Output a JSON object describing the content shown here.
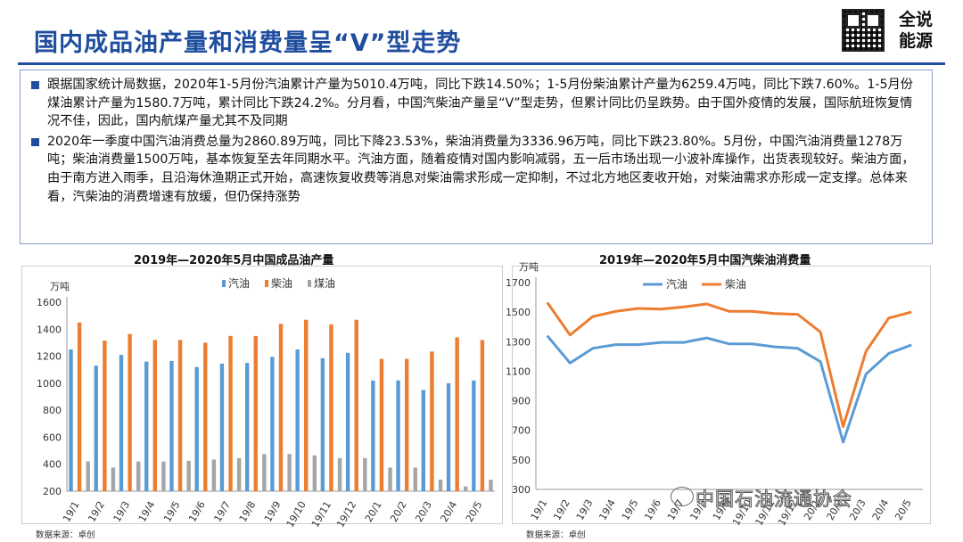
{
  "header": {
    "title": "国内成品油产量和消费量呈“V”型走势",
    "logo_text_1": "全说",
    "logo_text_2": "能源",
    "logo_icon": "qr-code-icon"
  },
  "summary": {
    "bullets": [
      "跟据国家统计局数据，2020年1-5月份汽油累计产量为5010.4万吨，同比下跌14.50%；1-5月份柴油累计产量为6259.4万吨，同比下跌7.60%。1-5月份煤油累计产量为1580.7万吨，累计同比下跌24.2%。分月看，中国汽柴油产量呈“V”型走势，但累计同比仍呈跌势。由于国外疫情的发展，国际航班恢复情况不佳，因此，国内航煤产量尤其不及同期",
      "2020年一季度中国汽油消费总量为2860.89万吨，同比下降23.53%，柴油消费量为3336.96万吨，同比下跌23.80%。5月份，中国汽油消费量1278万吨；柴油消费量1500万吨，基本恢复至去年同期水平。汽油方面，随着疫情对国内影响减弱，五一后市场出现一小波补库操作，出货表现较好。柴油方面，由于南方进入雨季，且沿海休渔期正式开始，高速恢复收费等消息对柴油需求形成一定抑制，不过北方地区麦收开始，对柴油需求亦形成一定支撑。总体来看，汽柴油的消费增速有放缓，但仍保持涨势"
    ]
  },
  "chart_data": [
    {
      "type": "bar",
      "title": "2019年—2020年5月中国成品油产量",
      "ylabel": "万吨",
      "ylim": [
        200,
        1600
      ],
      "yticks": [
        200,
        400,
        600,
        800,
        1000,
        1200,
        1400,
        1600
      ],
      "categories": [
        "19/1",
        "19/2",
        "19/3",
        "19/4",
        "19/5",
        "19/6",
        "19/7",
        "19/8",
        "19/9",
        "19/10",
        "19/11",
        "19/12",
        "20/1",
        "20/2",
        "20/3",
        "20/4",
        "20/5"
      ],
      "series": [
        {
          "name": "汽油",
          "color": "#5b9bd5",
          "values": [
            1250,
            1130,
            1210,
            1160,
            1165,
            1120,
            1145,
            1150,
            1195,
            1250,
            1185,
            1225,
            1020,
            1020,
            950,
            1000,
            1020
          ]
        },
        {
          "name": "柴油",
          "color": "#ed7d31",
          "values": [
            1450,
            1315,
            1365,
            1320,
            1320,
            1300,
            1350,
            1350,
            1440,
            1470,
            1435,
            1470,
            1180,
            1180,
            1235,
            1340,
            1320
          ]
        },
        {
          "name": "煤油",
          "color": "#a5a5a5",
          "values": [
            420,
            375,
            420,
            420,
            425,
            435,
            445,
            475,
            475,
            465,
            445,
            445,
            375,
            375,
            285,
            235,
            285
          ]
        }
      ],
      "legend": "top",
      "grid": false,
      "source": "数据来源：卓创"
    },
    {
      "type": "line",
      "title": "2019年—2020年5月中国汽柴油消费量",
      "ylabel": "万吨",
      "ylim": [
        300,
        1700
      ],
      "yticks": [
        300,
        500,
        700,
        900,
        1100,
        1300,
        1500,
        1700
      ],
      "categories": [
        "19/1",
        "19/2",
        "19/3",
        "19/4",
        "19/5",
        "19/6",
        "19/7",
        "19/8",
        "19/9",
        "19/10",
        "19/11",
        "19/12",
        "20/1",
        "20/2",
        "20/3",
        "20/4",
        "20/5"
      ],
      "series": [
        {
          "name": "汽油",
          "color": "#5b9bd5",
          "values": [
            1340,
            1155,
            1255,
            1280,
            1280,
            1295,
            1295,
            1325,
            1285,
            1285,
            1265,
            1255,
            1165,
            620,
            1080,
            1220,
            1278
          ]
        },
        {
          "name": "柴油",
          "color": "#ed7d31",
          "values": [
            1565,
            1345,
            1470,
            1505,
            1525,
            1520,
            1535,
            1555,
            1505,
            1505,
            1490,
            1485,
            1365,
            725,
            1235,
            1460,
            1500
          ]
        }
      ],
      "legend": "top",
      "grid": false,
      "source": "数据来源：卓创"
    }
  ],
  "watermark": {
    "text": "中国石油流通协会",
    "icon": "wechat-icon"
  }
}
